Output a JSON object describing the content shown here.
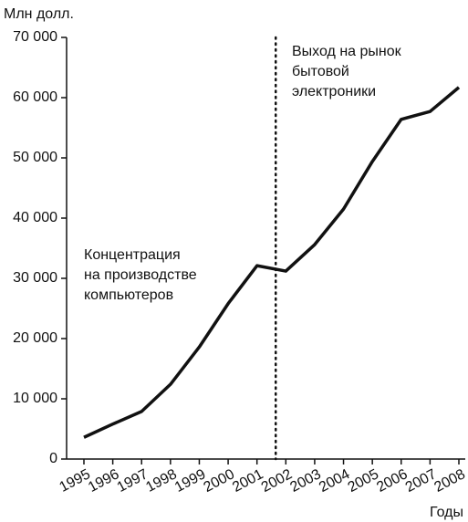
{
  "chart_data": {
    "type": "line",
    "y_label": "Млн долл.",
    "x_label": "Годы",
    "categories": [
      "1995",
      "1996",
      "1997",
      "1998",
      "1999",
      "2000",
      "2001",
      "2002",
      "2003",
      "2004",
      "2005",
      "2006",
      "2007",
      "2008"
    ],
    "series": [
      {
        "color": "#111111",
        "values": [
          3600,
          5800,
          7900,
          12400,
          18600,
          25800,
          32100,
          31200,
          35600,
          41500,
          49400,
          56400,
          57700,
          61700
        ]
      }
    ],
    "ylim": [
      0,
      70000
    ],
    "yticks": [
      0,
      {
        "value": 10000,
        "label": "10 000"
      },
      {
        "value": 20000,
        "label": "20 000"
      },
      {
        "value": 30000,
        "label": "30 000"
      },
      {
        "value": 40000,
        "label": "40 000"
      },
      {
        "value": 50000,
        "label": "50 000"
      },
      {
        "value": 60000,
        "label": "60 000"
      },
      {
        "value": 70000,
        "label": "70 000"
      }
    ],
    "annotations": [
      {
        "lines": [
          "Концентрация",
          "на производстве",
          "компьютеров"
        ]
      },
      {
        "lines": [
          "Выход на рынок",
          "бытовой",
          "электроники"
        ]
      }
    ]
  }
}
